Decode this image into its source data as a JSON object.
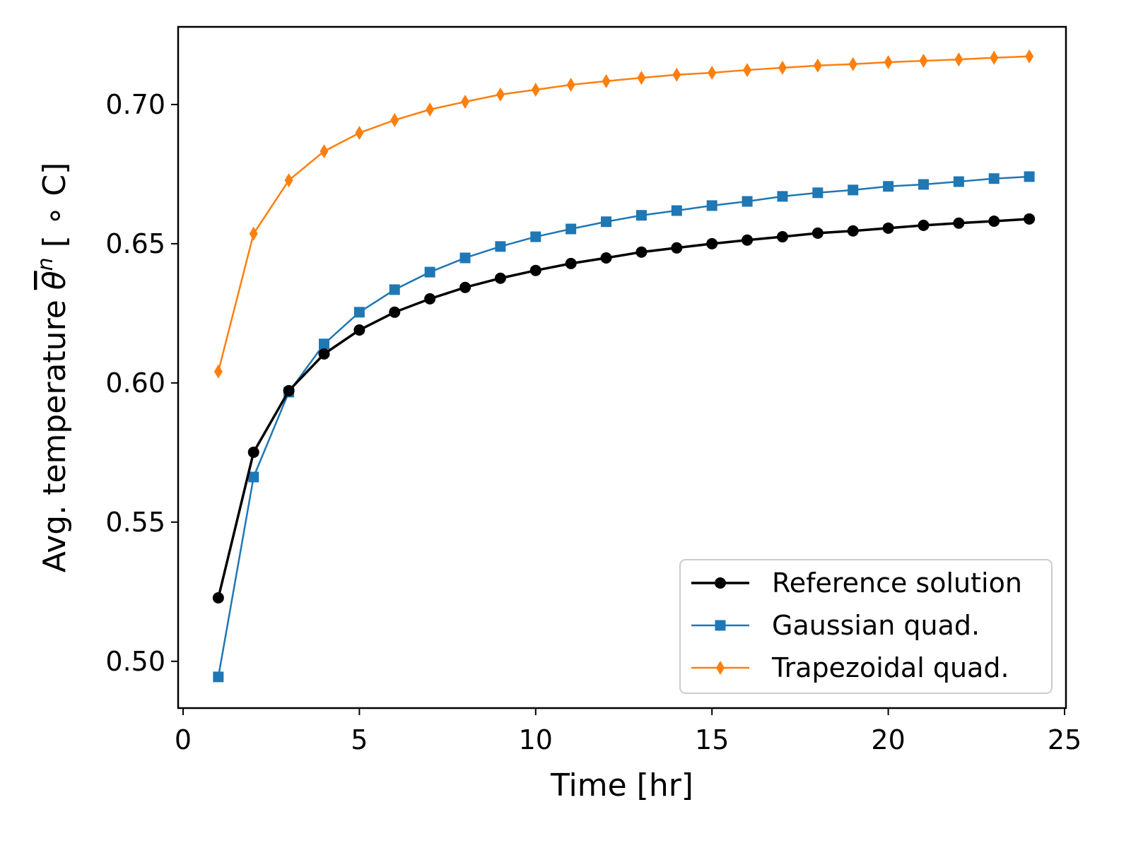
{
  "chart_data": {
    "type": "line",
    "title": "",
    "xlabel": "Time [hr]",
    "ylabel": {
      "prefix": "Avg. temperature ",
      "symbol": "θ",
      "sup": "n",
      "suffix": " [ ∘ C]"
    },
    "xlim": [
      -0.14,
      25.04
    ],
    "ylim": [
      0.4832,
      0.7279
    ],
    "xticks": [
      0,
      5,
      10,
      15,
      20,
      25
    ],
    "xtick_labels": [
      "0",
      "5",
      "10",
      "15",
      "20",
      "25"
    ],
    "yticks": [
      0.5,
      0.55,
      0.6,
      0.65,
      0.7
    ],
    "ytick_labels": [
      "0.50",
      "0.55",
      "0.60",
      "0.65",
      "0.70"
    ],
    "grid": false,
    "legend_position": "lower-right",
    "x": [
      1,
      2,
      3,
      4,
      5,
      6,
      7,
      8,
      9,
      10,
      11,
      12,
      13,
      14,
      15,
      16,
      17,
      18,
      19,
      20,
      21,
      22,
      23,
      24
    ],
    "series": [
      {
        "name": "Reference solution",
        "color": "#000000",
        "marker": "circle",
        "values": [
          0.5228,
          0.5751,
          0.5972,
          0.6104,
          0.619,
          0.6254,
          0.6302,
          0.6343,
          0.6376,
          0.6404,
          0.6429,
          0.6449,
          0.647,
          0.6485,
          0.65,
          0.6513,
          0.6525,
          0.6538,
          0.6546,
          0.6556,
          0.6566,
          0.6574,
          0.6581,
          0.6589
        ]
      },
      {
        "name": "Gaussian quad.",
        "color": "#1f77b4",
        "marker": "square",
        "values": [
          0.4944,
          0.5662,
          0.5967,
          0.614,
          0.6254,
          0.6335,
          0.6398,
          0.6449,
          0.649,
          0.6525,
          0.6553,
          0.6579,
          0.6602,
          0.6619,
          0.6637,
          0.6652,
          0.667,
          0.6683,
          0.6693,
          0.6706,
          0.6713,
          0.6723,
          0.6734,
          0.6741
        ]
      },
      {
        "name": "Trapezoidal quad.",
        "color": "#ff7f0e",
        "marker": "diamond",
        "values": [
          0.6041,
          0.6536,
          0.6728,
          0.6832,
          0.6898,
          0.6944,
          0.6982,
          0.701,
          0.7036,
          0.7053,
          0.7071,
          0.7084,
          0.7096,
          0.7107,
          0.7114,
          0.7124,
          0.7132,
          0.714,
          0.7145,
          0.7152,
          0.7157,
          0.7162,
          0.7168,
          0.7173
        ]
      }
    ]
  }
}
